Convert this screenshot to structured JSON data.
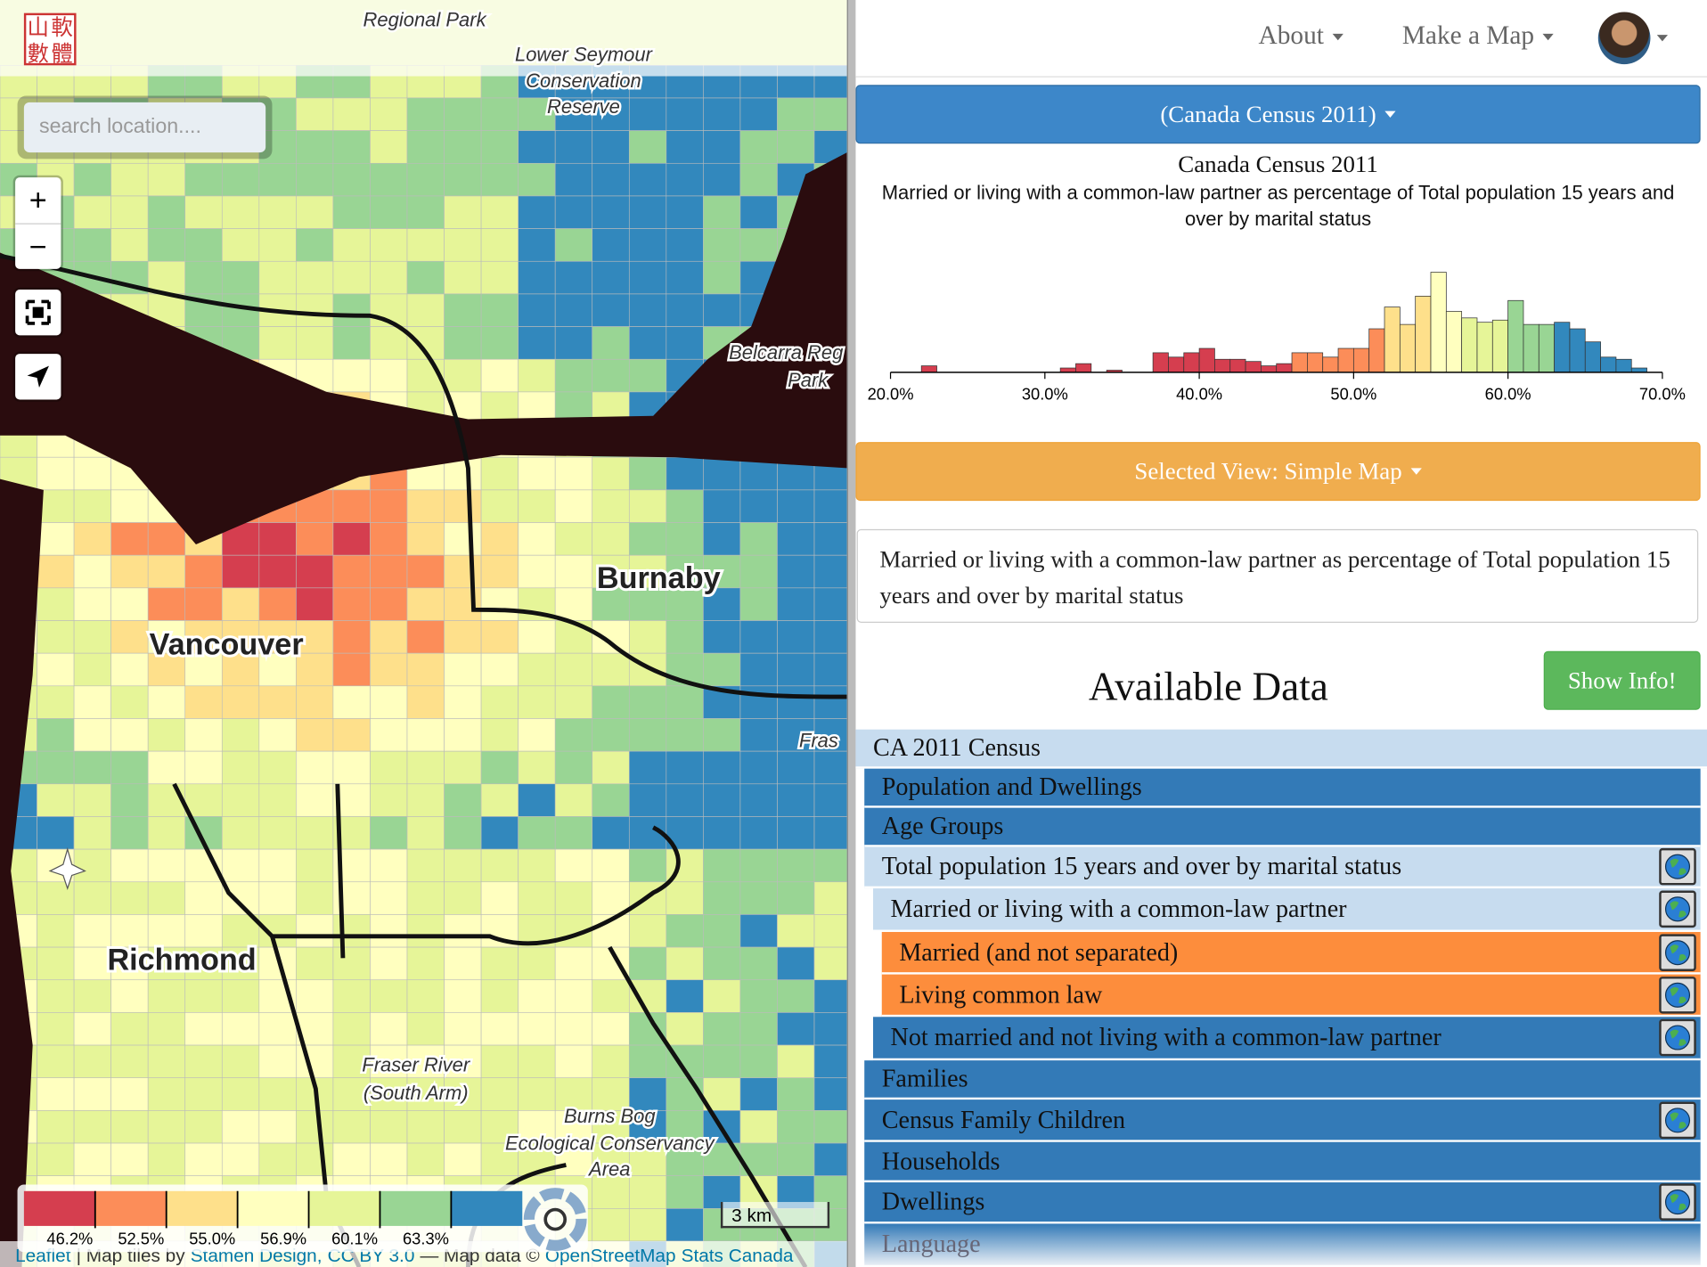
{
  "header": {
    "logo": [
      "山",
      "軟",
      "數",
      "體"
    ],
    "nav": [
      "About",
      "Make a Map"
    ]
  },
  "map": {
    "search_placeholder": "search location....",
    "zoom_in": "+",
    "zoom_out": "−",
    "places": {
      "regional_park": "Regional Park",
      "lower_seymour": [
        "Lower Seymour",
        "Conservation",
        "Reserve"
      ],
      "belcarra": [
        "Belcarra Reg",
        "Park"
      ],
      "burnaby": "Burnaby",
      "vancouver": "Vancouver",
      "richmond": "Richmond",
      "fraser": "Fras",
      "fraser_river": [
        "Fraser River",
        "(South Arm)"
      ],
      "burns_bog": [
        "Burns Bog",
        "Ecological Conservancy",
        "Area"
      ]
    },
    "legend": {
      "colors": [
        "#d53e4f",
        "#fc8d59",
        "#fee08b",
        "#ffffbf",
        "#e6f598",
        "#99d594",
        "#3288bd"
      ],
      "breaks": [
        {
          "value": 46.2,
          "label": "46.2%"
        },
        {
          "value": 52.5,
          "label": "52.5%"
        },
        {
          "value": 55.0,
          "label": "55.0%"
        },
        {
          "value": 56.9,
          "label": "56.9%"
        },
        {
          "value": 60.1,
          "label": "60.1%"
        },
        {
          "value": 63.3,
          "label": "63.3%"
        }
      ]
    },
    "scale": "3 km",
    "attribution": [
      {
        "text": "Leaflet",
        "link": true
      },
      {
        "text": "| Map tiles by",
        "link": false
      },
      {
        "text": "Stamen Design,",
        "link": true
      },
      {
        "text": "CC BY 3.0",
        "link": true
      },
      {
        "text": "— Map data ©",
        "link": false
      },
      {
        "text": "OpenStreetMap",
        "link": true
      },
      {
        "text": "Stats Canada",
        "link": true
      }
    ]
  },
  "panel": {
    "dataset_button": "(Canada Census 2011)",
    "view_button": "Selected View: Simple Map",
    "description": "Married or living with a common-law partner as percentage of Total population 15 years and over by marital status",
    "available_heading": "Available Data",
    "info_button": "Show Info!",
    "data_tree": [
      {
        "label": "CA 2011 Census",
        "level": 0,
        "style": "open",
        "globe": false
      },
      {
        "label": "Population and Dwellings",
        "level": 1,
        "style": "closed",
        "globe": false
      },
      {
        "label": "Age Groups",
        "level": 1,
        "style": "closed",
        "globe": false
      },
      {
        "label": "Total population 15 years and over by marital status",
        "level": 1,
        "style": "open",
        "globe": true
      },
      {
        "label": "Married or living with a common-law partner",
        "level": 2,
        "style": "open",
        "globe": true
      },
      {
        "label": "Married (and not separated)",
        "level": 3,
        "style": "selected",
        "globe": true
      },
      {
        "label": "Living common law",
        "level": 3,
        "style": "selected",
        "globe": true
      },
      {
        "label": "Not married and not living with a common-law partner",
        "level": 2,
        "style": "closed",
        "globe": true
      },
      {
        "label": "Families",
        "level": 1,
        "style": "closed",
        "globe": false
      },
      {
        "label": "Census Family Children",
        "level": 1,
        "style": "closed",
        "globe": true
      },
      {
        "label": "Households",
        "level": 1,
        "style": "closed",
        "globe": false
      },
      {
        "label": "Dwellings",
        "level": 1,
        "style": "closed",
        "globe": true
      },
      {
        "label": "Language",
        "level": 1,
        "style": "faded",
        "globe": false
      }
    ]
  },
  "chart_data": {
    "type": "histogram",
    "title": "Canada Census 2011",
    "subtitle": "Married or living with a common-law partner as percentage of Total population 15 years and over by marital status",
    "bins": [
      20,
      21,
      22,
      23,
      24,
      25,
      26,
      27,
      28,
      29,
      30,
      31,
      32,
      33,
      34,
      35,
      36,
      37,
      38,
      39,
      40,
      41,
      42,
      43,
      44,
      45,
      46,
      47,
      48,
      49,
      50,
      51,
      52,
      53,
      54,
      55,
      56,
      57,
      58,
      59,
      60,
      61,
      62,
      63,
      64,
      65,
      66,
      67,
      68,
      69,
      70
    ],
    "counts": [
      0,
      0,
      3,
      0,
      0,
      0,
      0,
      0,
      0,
      0,
      0,
      2,
      4,
      0,
      1,
      0,
      0,
      9,
      7,
      9,
      11,
      6,
      6,
      5,
      3,
      4,
      9,
      9,
      7,
      11,
      11,
      20,
      30,
      22,
      35,
      46,
      28,
      25,
      23,
      24,
      33,
      22,
      22,
      23,
      20,
      14,
      7,
      6,
      2,
      0
    ],
    "xlim": [
      20,
      70
    ],
    "xticks": [
      {
        "value": 20,
        "label": "20.0%"
      },
      {
        "value": 30,
        "label": "30.0%"
      },
      {
        "value": 40,
        "label": "40.0%"
      },
      {
        "value": 50,
        "label": "50.0%"
      },
      {
        "value": 60,
        "label": "60.0%"
      },
      {
        "value": 70,
        "label": "70.0%"
      }
    ],
    "ylim": [
      0,
      46
    ]
  }
}
